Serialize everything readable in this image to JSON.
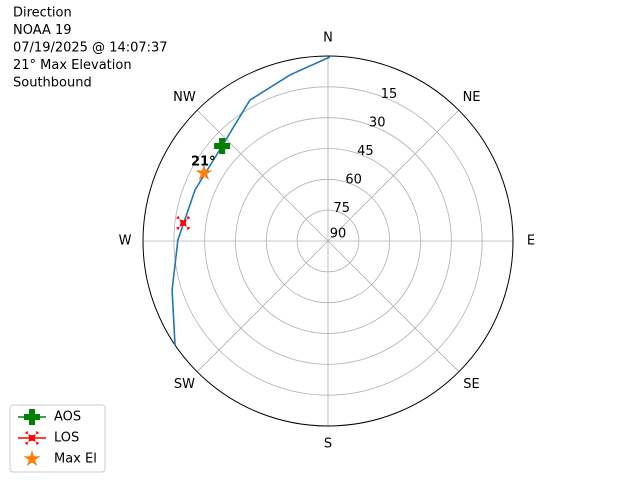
{
  "chart_data": {
    "type": "polar",
    "text": [
      "Direction",
      "NOAA 19",
      "07/19/2025 @ 14:07:37",
      "21° Max Elevation",
      "Southbound"
    ],
    "rlim": [
      90,
      0
    ],
    "rticks": [
      15,
      30,
      45,
      60,
      75,
      90
    ],
    "thetaticks": [
      {
        "value": 0,
        "label": "N"
      },
      {
        "value": 45,
        "label": "NE"
      },
      {
        "value": 90,
        "label": "E"
      },
      {
        "value": 135,
        "label": "SE"
      },
      {
        "value": 180,
        "label": "S"
      },
      {
        "value": 225,
        "label": "SW"
      },
      {
        "value": 270,
        "label": "W"
      },
      {
        "value": 315,
        "label": "NW"
      }
    ],
    "grid": true,
    "track": {
      "color": "#1f77b4",
      "az": [
        0.6,
        347.1,
        331,
        311.9,
        291,
        270.4,
        252.6,
        235.8
      ],
      "el": [
        0.5,
        7.1,
        11.6,
        20.8,
        20.7,
        17,
        10.5,
        0
      ]
    },
    "markers": [
      {
        "name": "AOS",
        "color": "#008000",
        "marker": "plus",
        "legend_line": true,
        "az": 311.9,
        "el": 20.8
      },
      {
        "name": "LOS",
        "color": "#ff0000",
        "marker": "x",
        "legend_line": true,
        "az": 277.1,
        "el": 19
      },
      {
        "name": "Max El",
        "color": "#ff7f0e",
        "marker": "star",
        "legend_line": false,
        "az": 298.7,
        "el": 21.2
      }
    ],
    "annotation": "21°",
    "legend": "lower left"
  }
}
